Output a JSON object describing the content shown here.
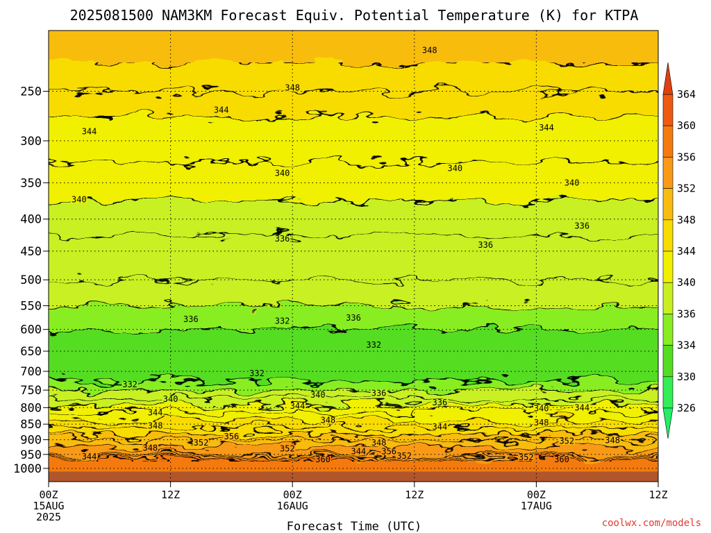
{
  "chart_data": {
    "type": "heatmap",
    "title": "2025081500 NAM3KM Forecast Equiv. Potential Temperature (K) for KTPA",
    "xlabel": "Forecast Time (UTC)",
    "ylabel": "",
    "y_scale": "log",
    "y_reversed": true,
    "y_range_hpa": [
      1050,
      200
    ],
    "y_ticks": [
      1000,
      950,
      900,
      850,
      800,
      750,
      700,
      650,
      600,
      550,
      500,
      450,
      400,
      350,
      300,
      250
    ],
    "x_range_hours": [
      0,
      60
    ],
    "x_ticks": [
      {
        "hour": 0,
        "lines": [
          "00Z",
          "15AUG",
          "2025"
        ]
      },
      {
        "hour": 12,
        "lines": [
          "12Z"
        ]
      },
      {
        "hour": 24,
        "lines": [
          "00Z",
          "16AUG"
        ]
      },
      {
        "hour": 36,
        "lines": [
          "12Z"
        ]
      },
      {
        "hour": 48,
        "lines": [
          "00Z",
          "17AUG"
        ]
      },
      {
        "hour": 60,
        "lines": [
          "12Z"
        ]
      }
    ],
    "grid": true,
    "contour_interval_K": 2,
    "ground_level_hpa": 1012,
    "colorbar": {
      "placement": "right",
      "ticks": [
        364,
        360,
        356,
        352,
        348,
        344,
        340,
        336,
        334,
        330,
        326
      ],
      "bands": [
        {
          "min": 326,
          "max": 330,
          "color": "#33ee55"
        },
        {
          "min": 330,
          "max": 334,
          "color": "#55dd22"
        },
        {
          "min": 334,
          "max": 336,
          "color": "#88ee22"
        },
        {
          "min": 336,
          "max": 340,
          "color": "#c8f020"
        },
        {
          "min": 340,
          "max": 344,
          "color": "#f0f000"
        },
        {
          "min": 344,
          "max": 348,
          "color": "#f8dc00"
        },
        {
          "min": 348,
          "max": 352,
          "color": "#f8bc10"
        },
        {
          "min": 352,
          "max": 356,
          "color": "#f89a18"
        },
        {
          "min": 356,
          "max": 360,
          "color": "#f47a10"
        },
        {
          "min": 360,
          "max": 364,
          "color": "#ee5a10"
        }
      ],
      "top_arrow_color": "#e04010",
      "bottom_arrow_color": "#22ee66"
    },
    "profile": {
      "levels_hpa": [
        1000,
        975,
        950,
        925,
        900,
        875,
        850,
        825,
        800,
        775,
        750,
        725,
        700,
        675,
        650,
        625,
        600,
        575,
        550,
        525,
        500,
        475,
        450,
        425,
        400,
        375,
        350,
        325,
        300,
        275,
        250,
        225,
        210
      ],
      "theta_e_K": [
        358,
        358,
        352,
        352,
        350,
        347,
        345,
        343,
        341,
        338,
        336,
        334,
        333,
        333,
        333,
        333,
        334,
        335,
        336,
        337,
        338,
        338,
        338,
        338,
        339,
        340,
        341,
        342,
        343,
        344,
        346,
        348,
        349
      ]
    },
    "contour_labels": [
      {
        "value": 348,
        "hour": 37.5,
        "p": 215
      },
      {
        "value": 348,
        "hour": 24.0,
        "p": 247
      },
      {
        "value": 344,
        "hour": 17.0,
        "p": 268
      },
      {
        "value": 344,
        "hour": 4.0,
        "p": 290
      },
      {
        "value": 344,
        "hour": 49.0,
        "p": 286
      },
      {
        "value": 340,
        "hour": 23.0,
        "p": 338
      },
      {
        "value": 340,
        "hour": 40.0,
        "p": 332
      },
      {
        "value": 340,
        "hour": 51.5,
        "p": 350
      },
      {
        "value": 340,
        "hour": 3.0,
        "p": 372
      },
      {
        "value": 336,
        "hour": 23.0,
        "p": 430
      },
      {
        "value": 336,
        "hour": 52.5,
        "p": 410
      },
      {
        "value": 336,
        "hour": 43.0,
        "p": 440
      },
      {
        "value": 336,
        "hour": 14.0,
        "p": 578
      },
      {
        "value": 332,
        "hour": 23.0,
        "p": 582
      },
      {
        "value": 336,
        "hour": 30.0,
        "p": 575
      },
      {
        "value": 332,
        "hour": 32.0,
        "p": 635
      },
      {
        "value": 332,
        "hour": 20.5,
        "p": 705
      },
      {
        "value": 332,
        "hour": 8.0,
        "p": 735
      },
      {
        "value": 340,
        "hour": 12.0,
        "p": 775
      },
      {
        "value": 340,
        "hour": 26.5,
        "p": 763
      },
      {
        "value": 336,
        "hour": 32.5,
        "p": 758
      },
      {
        "value": 336,
        "hour": 38.5,
        "p": 785
      },
      {
        "value": 344,
        "hour": 10.5,
        "p": 815
      },
      {
        "value": 344,
        "hour": 24.5,
        "p": 795
      },
      {
        "value": 340,
        "hour": 48.5,
        "p": 802
      },
      {
        "value": 344,
        "hour": 52.5,
        "p": 800
      },
      {
        "value": 348,
        "hour": 10.5,
        "p": 855
      },
      {
        "value": 348,
        "hour": 27.5,
        "p": 838
      },
      {
        "value": 344,
        "hour": 38.5,
        "p": 858
      },
      {
        "value": 348,
        "hour": 48.5,
        "p": 845
      },
      {
        "value": 356,
        "hour": 18.0,
        "p": 890
      },
      {
        "value": 352,
        "hour": 15.0,
        "p": 910
      },
      {
        "value": 348,
        "hour": 10.0,
        "p": 928
      },
      {
        "value": 352,
        "hour": 23.5,
        "p": 930
      },
      {
        "value": 348,
        "hour": 32.5,
        "p": 910
      },
      {
        "value": 352,
        "hour": 51.0,
        "p": 905
      },
      {
        "value": 348,
        "hour": 55.5,
        "p": 902
      },
      {
        "value": 344,
        "hour": 4.0,
        "p": 958
      },
      {
        "value": 344,
        "hour": 30.5,
        "p": 940
      },
      {
        "value": 356,
        "hour": 33.5,
        "p": 940
      },
      {
        "value": 352,
        "hour": 35.0,
        "p": 955
      },
      {
        "value": 360,
        "hour": 27.0,
        "p": 968
      },
      {
        "value": 352,
        "hour": 47.0,
        "p": 960
      },
      {
        "value": 360,
        "hour": 50.5,
        "p": 968
      }
    ]
  },
  "credit": "coolwx.com/models"
}
